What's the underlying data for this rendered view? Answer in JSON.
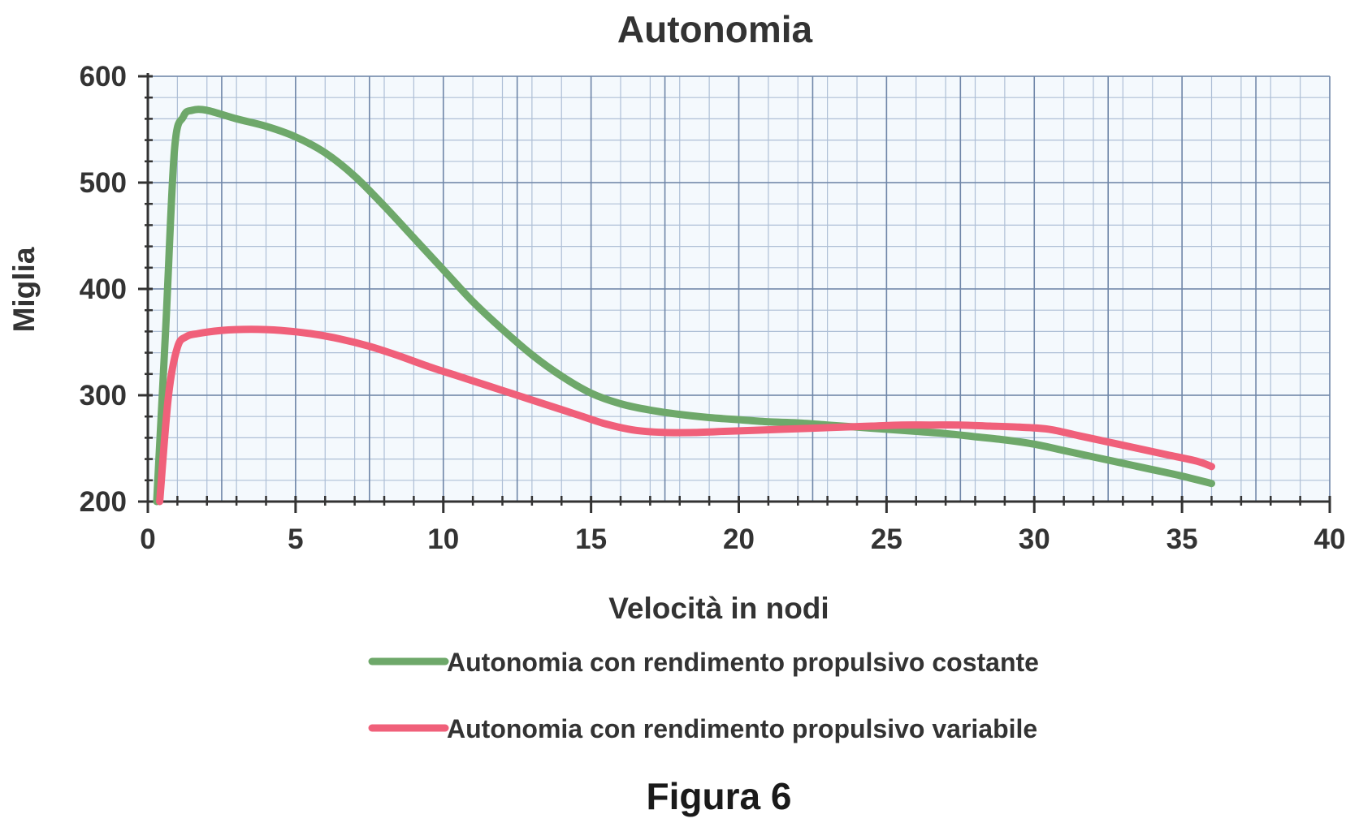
{
  "colors": {
    "series_constant": "#6ea86a",
    "series_variable": "#f0607a",
    "grid_major": "#6f86a8",
    "grid_minor": "#aebfd6",
    "axis": "#333333",
    "plot_background": "#f4f9fd"
  },
  "caption": "Figura  6",
  "chart_data": {
    "type": "line",
    "title": "Autonomia",
    "xlabel": "Velocità in nodi",
    "ylabel": "Miglia",
    "xlim": [
      0,
      40
    ],
    "ylim": [
      200,
      600
    ],
    "xticks": [
      0,
      5,
      10,
      15,
      20,
      25,
      30,
      35,
      40
    ],
    "yticks": [
      200,
      300,
      400,
      500,
      600
    ],
    "xtick_labels": [
      "0",
      "5",
      "10",
      "15",
      "20",
      "25",
      "30",
      "35",
      "40"
    ],
    "ytick_labels": [
      "200",
      "300",
      "400",
      "500",
      "600"
    ],
    "grid": true,
    "legend_position": "bottom",
    "series": [
      {
        "name": "Autonomia con rendimento propulsivo costante",
        "x": [
          0.3,
          0.6,
          0.9,
          1.2,
          1.5,
          2,
          3,
          4,
          5,
          6,
          7,
          8,
          9,
          10,
          11,
          12,
          13,
          14,
          15,
          16,
          17,
          18,
          19,
          20,
          21,
          22,
          23,
          24,
          25,
          26,
          27,
          28,
          29,
          30,
          31,
          32,
          33,
          34,
          35,
          36
        ],
        "y": [
          200,
          360,
          530,
          562,
          568,
          568,
          560,
          553,
          543,
          528,
          506,
          478,
          448,
          418,
          388,
          362,
          338,
          318,
          302,
          292,
          286,
          282,
          279,
          277,
          275,
          274,
          272,
          270,
          268,
          266,
          264,
          261,
          258,
          254,
          248,
          242,
          236,
          230,
          224,
          217
        ]
      },
      {
        "name": "Autonomia con rendimento propulsivo variabile",
        "x": [
          0.4,
          0.7,
          1.0,
          1.3,
          1.7,
          2.5,
          3.5,
          4.5,
          5.5,
          6.5,
          7.5,
          8.5,
          9.5,
          10.5,
          11.5,
          12.5,
          13.5,
          14.5,
          15.5,
          16.5,
          17.5,
          18.5,
          19.5,
          20.5,
          21.5,
          22.5,
          23.5,
          24.5,
          25.5,
          26.5,
          27.5,
          28.5,
          29.5,
          30.5,
          31.5,
          32.5,
          33.5,
          34.5,
          35.5,
          36
        ],
        "y": [
          200,
          300,
          345,
          355,
          358,
          361,
          362,
          361,
          358,
          353,
          346,
          337,
          327,
          318,
          309,
          300,
          291,
          282,
          273,
          267,
          265,
          265,
          266,
          267,
          268,
          269,
          270,
          271,
          272,
          272,
          272,
          271,
          270,
          268,
          262,
          256,
          250,
          244,
          238,
          233
        ]
      }
    ]
  }
}
